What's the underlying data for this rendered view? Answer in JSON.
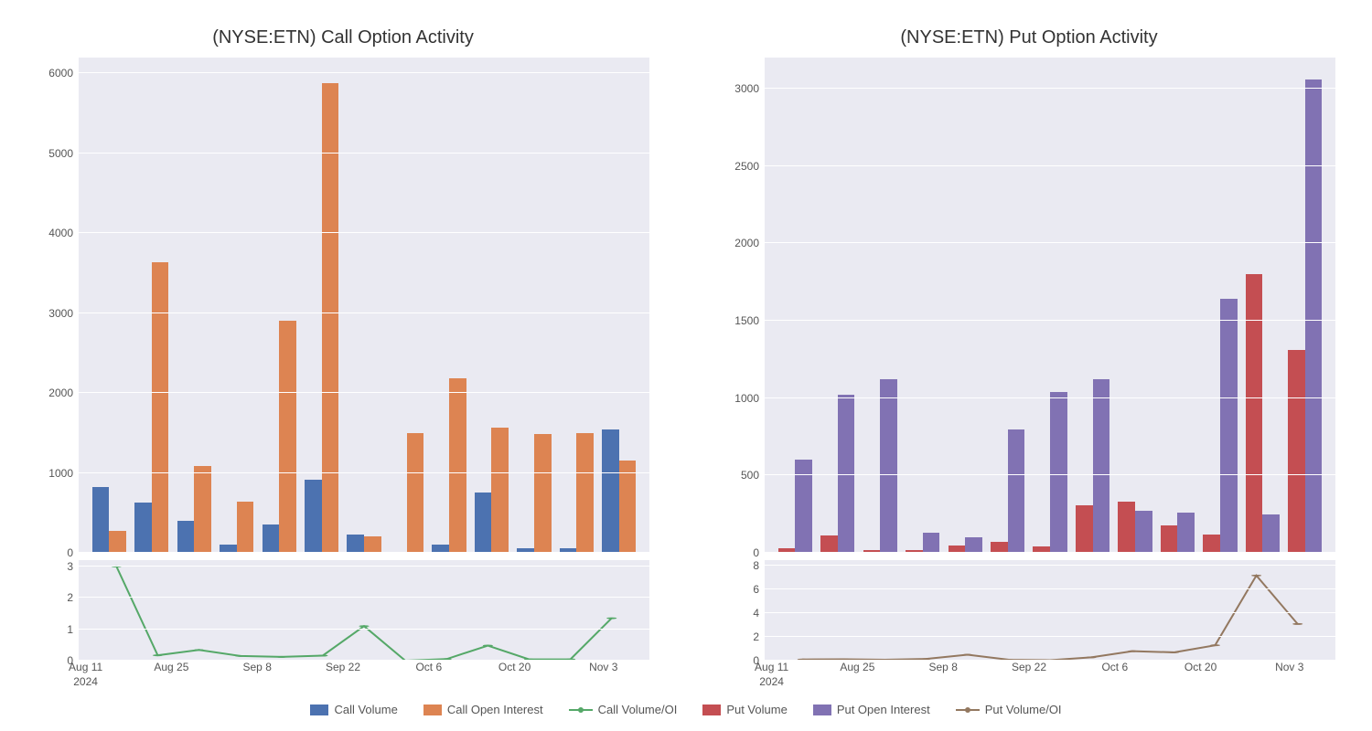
{
  "colors": {
    "call_volume": "#4c72b0",
    "call_oi": "#dd8452",
    "call_ratio": "#55a868",
    "put_volume": "#c44e52",
    "put_oi": "#8172b3",
    "put_ratio": "#937860",
    "plot_bg": "#eaeaf2",
    "grid": "#ffffff",
    "text": "#555555"
  },
  "legend": {
    "call_volume": "Call Volume",
    "call_oi": "Call Open Interest",
    "call_ratio": "Call Volume/OI",
    "put_volume": "Put Volume",
    "put_oi": "Put Open Interest",
    "put_ratio": "Put Volume/OI"
  },
  "x": {
    "ticks": [
      "Aug 11",
      "Aug 25",
      "Sep 8",
      "Sep 22",
      "Oct 6",
      "Oct 20",
      "Nov 3"
    ],
    "tick_positions_pct": [
      8,
      22,
      36,
      50,
      64,
      78,
      92.5
    ],
    "year_label": "2024",
    "year_label_pos_pct": 8,
    "n_groups": 13
  },
  "left": {
    "title": "(NYSE:ETN) Call Option Activity",
    "type": "bar+line",
    "bar": {
      "ymax": 6200,
      "yticks": [
        0,
        1000,
        2000,
        3000,
        4000,
        5000,
        6000
      ],
      "series1": [
        820,
        630,
        400,
        100,
        360,
        920,
        230,
        0,
        100,
        760,
        60,
        60,
        1540
      ],
      "series2": [
        280,
        3640,
        1090,
        640,
        2900,
        5880,
        210,
        1500,
        2190,
        1570,
        1490,
        1500,
        1150
      ]
    },
    "ratio": {
      "ymax": 3.2,
      "yticks": [
        0,
        1,
        2,
        3
      ],
      "values": [
        3.0,
        0.17,
        0.34,
        0.15,
        0.12,
        0.16,
        1.1,
        0.0,
        0.05,
        0.48,
        0.04,
        0.04,
        1.35
      ]
    }
  },
  "right": {
    "title": "(NYSE:ETN) Put Option Activity",
    "type": "bar+line",
    "bar": {
      "ymax": 3200,
      "yticks": [
        0,
        500,
        1000,
        1500,
        2000,
        2500,
        3000
      ],
      "series1": [
        30,
        110,
        20,
        20,
        50,
        70,
        40,
        310,
        330,
        180,
        120,
        1800,
        1310
      ],
      "series2": [
        600,
        1020,
        1120,
        130,
        100,
        800,
        1040,
        1120,
        270,
        260,
        1640,
        250,
        3060
      ]
    },
    "ratio": {
      "ymax": 8.5,
      "yticks": [
        0,
        2,
        4,
        6,
        8
      ],
      "values": [
        0.1,
        0.12,
        0.08,
        0.15,
        0.5,
        0.08,
        0.04,
        0.28,
        0.8,
        0.7,
        1.3,
        7.2,
        3.1
      ]
    }
  }
}
